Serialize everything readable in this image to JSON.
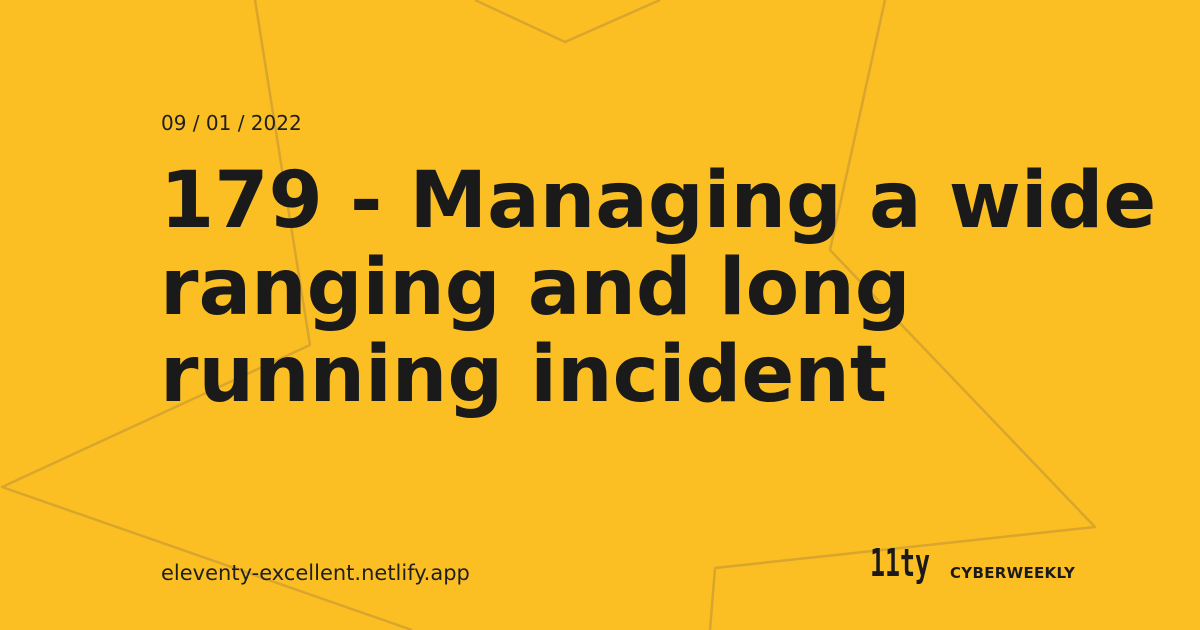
{
  "colors": {
    "background": "#fbbf24",
    "text": "#1a1a1a",
    "decoration_line": "#d9a52d"
  },
  "post": {
    "date": "09 / 01 / 2022",
    "title": "179 - Managing a wide ranging and long running incident"
  },
  "footer": {
    "site_url": "eleventy-excellent.netlify.app",
    "logo_text": "11ty",
    "brand_name": "CYBERWEEKLY"
  },
  "decoration": {
    "shape": "star-outline"
  }
}
